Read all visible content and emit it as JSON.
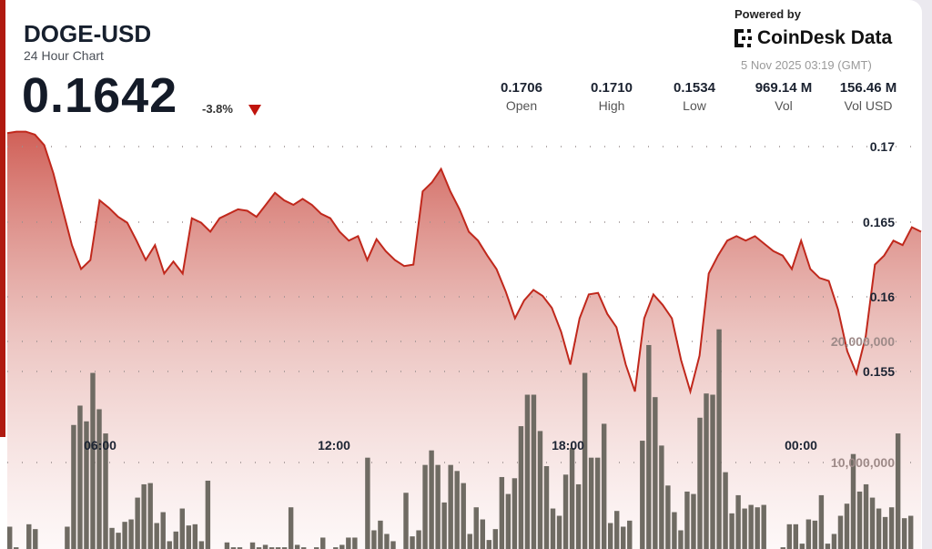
{
  "header": {
    "symbol": "DOGE-USD",
    "subtitle": "24 Hour Chart",
    "price": "0.1642",
    "change": "-3.8%",
    "direction_icon": "triangle-down",
    "down_color": "#c0140c"
  },
  "branding": {
    "powered_by": "Powered by",
    "logo_text": "CoinDesk Data",
    "timestamp": "5 Nov 2025 03:19 (GMT)"
  },
  "stats": [
    {
      "value": "0.1706",
      "label": "Open"
    },
    {
      "value": "0.1710",
      "label": "High"
    },
    {
      "value": "0.1534",
      "label": "Low"
    },
    {
      "value": "969.14 M",
      "label": "Vol"
    },
    {
      "value": "156.46 M",
      "label": "Vol USD"
    }
  ],
  "chart_data": {
    "type": "area",
    "grid": true,
    "x_ticks": [
      "06:00",
      "12:00",
      "18:00",
      "00:00"
    ],
    "price_ticks": [
      "0.17",
      "0.165",
      "0.16",
      "0.155"
    ],
    "volume_ticks": [
      "20,000,000",
      "10,000,000"
    ],
    "price_ylim": [
      0.15,
      0.172
    ],
    "line_color": "#c0281c",
    "prices": [
      0.1709,
      0.171,
      0.171,
      0.1708,
      0.1701,
      0.1682,
      0.1658,
      0.1634,
      0.1618,
      0.1624,
      0.1664,
      0.1659,
      0.1653,
      0.1649,
      0.1637,
      0.1624,
      0.1634,
      0.1615,
      0.1623,
      0.1615,
      0.1652,
      0.1649,
      0.1643,
      0.1652,
      0.1655,
      0.1658,
      0.1657,
      0.1653,
      0.1661,
      0.1669,
      0.1664,
      0.1661,
      0.1665,
      0.1661,
      0.1655,
      0.1652,
      0.1643,
      0.1637,
      0.164,
      0.1624,
      0.1638,
      0.163,
      0.1624,
      0.162,
      0.1621,
      0.167,
      0.1676,
      0.1685,
      0.167,
      0.1658,
      0.1643,
      0.1637,
      0.1627,
      0.1618,
      0.1603,
      0.1585,
      0.1597,
      0.1604,
      0.16,
      0.1592,
      0.1576,
      0.1554,
      0.1585,
      0.1601,
      0.1602,
      0.1588,
      0.1579,
      0.1554,
      0.1536,
      0.1585,
      0.1601,
      0.1594,
      0.1585,
      0.1557,
      0.1536,
      0.156,
      0.1615,
      0.1627,
      0.1637,
      0.164,
      0.1637,
      0.164,
      0.1635,
      0.163,
      0.1627,
      0.1618,
      0.1637,
      0.1618,
      0.1612,
      0.161,
      0.1591,
      0.1563,
      0.1548,
      0.1573,
      0.1621,
      0.1627,
      0.1637,
      0.1634,
      0.1646,
      0.1643
    ],
    "volume_color": "#6f6b63",
    "volumes": [
      4700000,
      3000000,
      500000,
      4900000,
      4500000,
      500000,
      500000,
      500000,
      500000,
      4700000,
      13100000,
      14700000,
      13400000,
      17400000,
      14400000,
      12400000,
      4600000,
      4200000,
      5100000,
      5300000,
      7100000,
      8200000,
      8300000,
      5000000,
      5900000,
      3500000,
      4300000,
      6200000,
      4800000,
      4900000,
      3500000,
      8500000,
      1500000,
      1500000,
      3400000,
      3000000,
      3000000,
      2500000,
      3400000,
      3000000,
      3200000,
      3000000,
      3000000,
      3000000,
      6300000,
      3200000,
      3000000,
      500000,
      3000000,
      3800000,
      500000,
      3000000,
      3200000,
      3800000,
      3800000,
      500000,
      10400000,
      4400000,
      5200000,
      4100000,
      3500000,
      500000,
      7500000,
      3900000,
      4400000,
      9800000,
      11000000,
      9800000,
      6700000,
      9800000,
      9300000,
      8300000,
      4100000,
      6300000,
      5300000,
      3600000,
      4500000,
      8800000,
      7400000,
      8700000,
      13000000,
      15600000,
      15600000,
      12600000,
      9700000,
      6200000,
      5600000,
      9000000,
      11200000,
      8200000,
      17400000,
      10400000,
      10400000,
      13200000,
      5000000,
      6000000,
      4700000,
      5200000,
      0,
      11800000,
      19700000,
      15400000,
      11400000,
      8100000,
      5900000,
      4400000,
      7600000,
      7400000,
      13700000,
      15700000,
      15600000,
      21000000,
      9200000,
      5800000,
      7300000,
      6200000,
      6500000,
      6300000,
      6500000,
      0,
      0,
      3000000,
      4900000,
      4900000,
      3300000,
      5300000,
      5200000,
      7300000,
      3300000,
      4100000,
      5600000,
      6600000,
      10700000,
      7600000,
      8200000,
      7100000,
      6200000,
      5500000,
      6300000,
      12400000,
      5400000,
      5600000
    ]
  }
}
